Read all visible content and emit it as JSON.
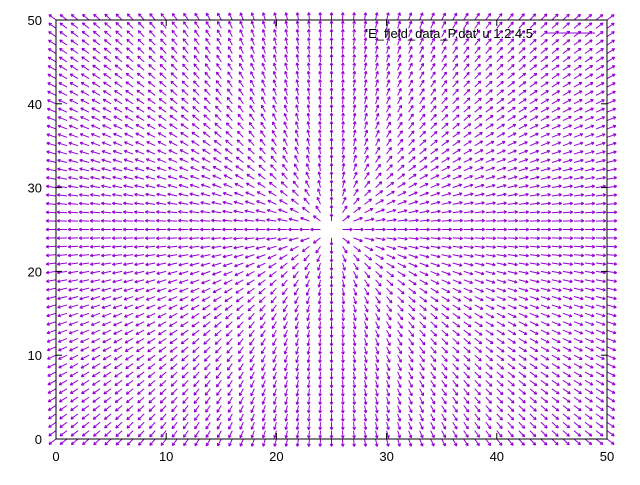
{
  "chart_data": {
    "type": "vector-field",
    "title": "",
    "xlabel": "",
    "ylabel": "",
    "xlim": [
      0,
      50
    ],
    "ylim": [
      0,
      50
    ],
    "x_ticks": [
      0,
      10,
      20,
      30,
      40,
      50
    ],
    "y_ticks": [
      0,
      10,
      20,
      30,
      40,
      50
    ],
    "x_tick_labels": [
      "0",
      "10",
      "20",
      "30",
      "40",
      "50"
    ],
    "y_tick_labels": [
      "0",
      "10",
      "20",
      "30",
      "40",
      "50"
    ],
    "grid": false,
    "legend": {
      "position": "top-right",
      "entries": [
        {
          "label": "'E_field_data_P.dat' u 1:2:4:5",
          "color": "#9400d3"
        }
      ]
    },
    "series": [
      {
        "name": "'E_field_data_P.dat' u 1:2:4:5",
        "color": "#9400d3",
        "field": {
          "description": "point-charge field",
          "x_range": [
            0,
            50
          ],
          "y_range": [
            0,
            50
          ],
          "step": 1,
          "center": [
            25,
            25
          ]
        }
      }
    ]
  }
}
